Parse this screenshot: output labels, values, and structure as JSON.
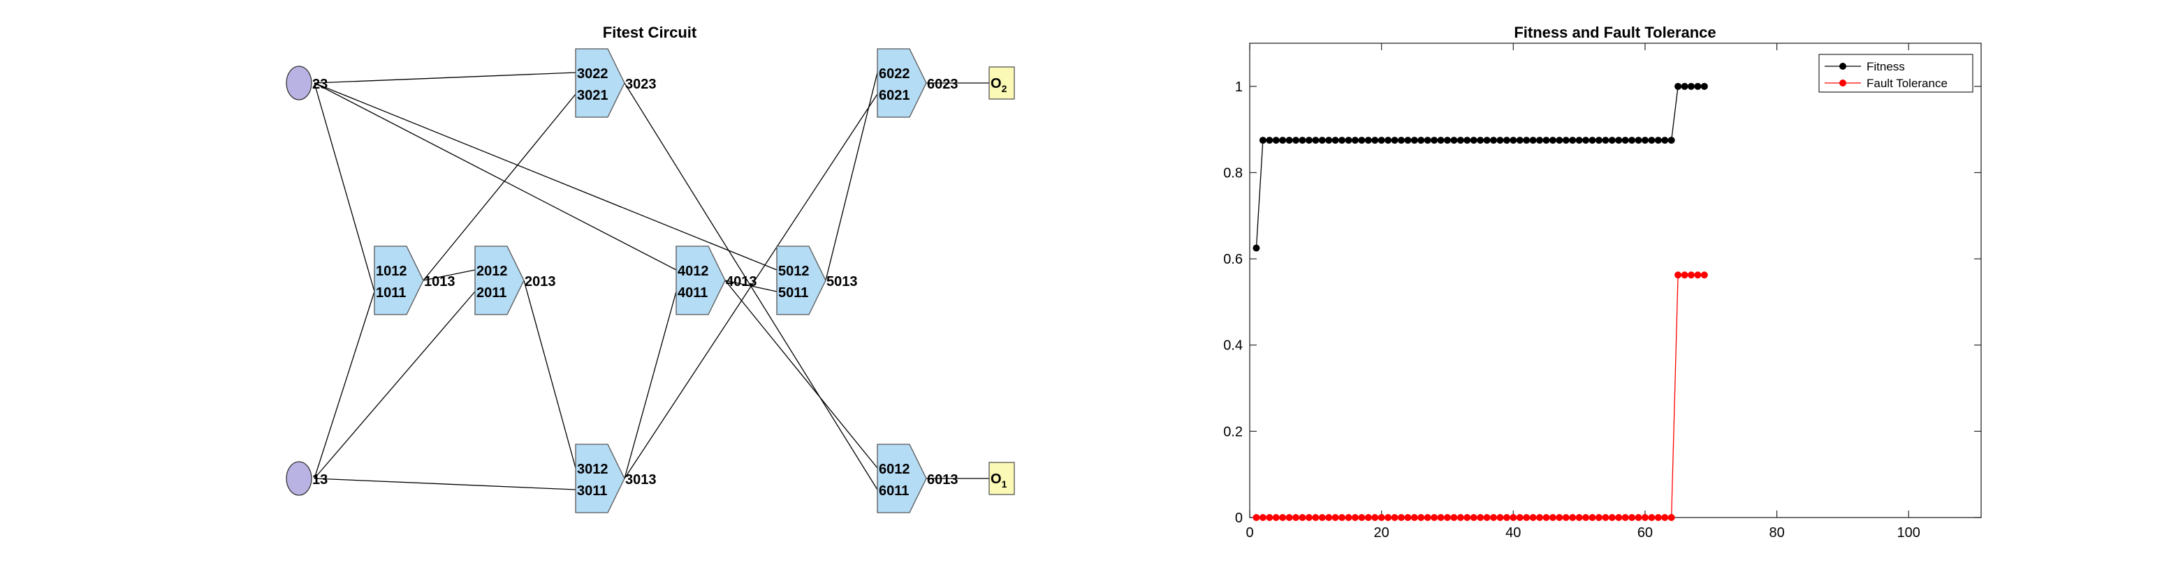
{
  "circuit": {
    "title": "Fitest Circuit",
    "colors": {
      "input": "#b9b3e3",
      "gate": "#b5dcf5",
      "output": "#fbf9b6",
      "edge": "#000000"
    },
    "inputs": [
      {
        "id": "in23",
        "label": "23"
      },
      {
        "id": "in13",
        "label": "13"
      }
    ],
    "gates": [
      {
        "id": "g1",
        "in_top": "1012",
        "in_bottom": "1011",
        "out": "1013"
      },
      {
        "id": "g2",
        "in_top": "2012",
        "in_bottom": "2011",
        "out": "2013"
      },
      {
        "id": "g3t",
        "in_top": "3022",
        "in_bottom": "3021",
        "out": "3023"
      },
      {
        "id": "g3b",
        "in_top": "3012",
        "in_bottom": "3011",
        "out": "3013"
      },
      {
        "id": "g4",
        "in_top": "4012",
        "in_bottom": "4011",
        "out": "4013"
      },
      {
        "id": "g5",
        "in_top": "5012",
        "in_bottom": "5011",
        "out": "5013"
      },
      {
        "id": "g6t",
        "in_top": "6022",
        "in_bottom": "6021",
        "out": "6023"
      },
      {
        "id": "g6b",
        "in_top": "6012",
        "in_bottom": "6011",
        "out": "6013"
      }
    ],
    "outputs": [
      {
        "id": "o2",
        "label": "O",
        "sub": "2"
      },
      {
        "id": "o1",
        "label": "O",
        "sub": "1"
      }
    ]
  },
  "chart_data": {
    "type": "line",
    "title": "Fitness and Fault Tolerance",
    "xlabel": "",
    "ylabel": "",
    "xlim": [
      0,
      111
    ],
    "ylim": [
      0,
      1.1
    ],
    "xticks": [
      0,
      20,
      40,
      60,
      80,
      100
    ],
    "yticks": [
      0,
      0.2,
      0.4,
      0.6,
      0.8,
      1
    ],
    "grid": false,
    "legend_location": "top-right",
    "series": [
      {
        "name": "Fitness",
        "color": "#000000",
        "x": [
          1,
          2,
          3,
          4,
          5,
          6,
          7,
          8,
          9,
          10,
          11,
          12,
          13,
          14,
          15,
          16,
          17,
          18,
          19,
          20,
          21,
          22,
          23,
          24,
          25,
          26,
          27,
          28,
          29,
          30,
          31,
          32,
          33,
          34,
          35,
          36,
          37,
          38,
          39,
          40,
          41,
          42,
          43,
          44,
          45,
          46,
          47,
          48,
          49,
          50,
          51,
          52,
          53,
          54,
          55,
          56,
          57,
          58,
          59,
          60,
          61,
          62,
          63,
          64,
          65,
          66,
          67,
          68,
          69
        ],
        "values": [
          0.625,
          0.875,
          0.875,
          0.875,
          0.875,
          0.875,
          0.875,
          0.875,
          0.875,
          0.875,
          0.875,
          0.875,
          0.875,
          0.875,
          0.875,
          0.875,
          0.875,
          0.875,
          0.875,
          0.875,
          0.875,
          0.875,
          0.875,
          0.875,
          0.875,
          0.875,
          0.875,
          0.875,
          0.875,
          0.875,
          0.875,
          0.875,
          0.875,
          0.875,
          0.875,
          0.875,
          0.875,
          0.875,
          0.875,
          0.875,
          0.875,
          0.875,
          0.875,
          0.875,
          0.875,
          0.875,
          0.875,
          0.875,
          0.875,
          0.875,
          0.875,
          0.875,
          0.875,
          0.875,
          0.875,
          0.875,
          0.875,
          0.875,
          0.875,
          0.875,
          0.875,
          0.875,
          0.875,
          0.875,
          1,
          1,
          1,
          1,
          1
        ]
      },
      {
        "name": "Fault Tolerance",
        "color": "#ff0000",
        "x": [
          1,
          2,
          3,
          4,
          5,
          6,
          7,
          8,
          9,
          10,
          11,
          12,
          13,
          14,
          15,
          16,
          17,
          18,
          19,
          20,
          21,
          22,
          23,
          24,
          25,
          26,
          27,
          28,
          29,
          30,
          31,
          32,
          33,
          34,
          35,
          36,
          37,
          38,
          39,
          40,
          41,
          42,
          43,
          44,
          45,
          46,
          47,
          48,
          49,
          50,
          51,
          52,
          53,
          54,
          55,
          56,
          57,
          58,
          59,
          60,
          61,
          62,
          63,
          64,
          65,
          66,
          67,
          68,
          69
        ],
        "values": [
          0,
          0,
          0,
          0,
          0,
          0,
          0,
          0,
          0,
          0,
          0,
          0,
          0,
          0,
          0,
          0,
          0,
          0,
          0,
          0,
          0,
          0,
          0,
          0,
          0,
          0,
          0,
          0,
          0,
          0,
          0,
          0,
          0,
          0,
          0,
          0,
          0,
          0,
          0,
          0,
          0,
          0,
          0,
          0,
          0,
          0,
          0,
          0,
          0,
          0,
          0,
          0,
          0,
          0,
          0,
          0,
          0,
          0,
          0,
          0,
          0,
          0,
          0,
          0,
          0.5625,
          0.5625,
          0.5625,
          0.5625,
          0.5625
        ]
      }
    ]
  }
}
